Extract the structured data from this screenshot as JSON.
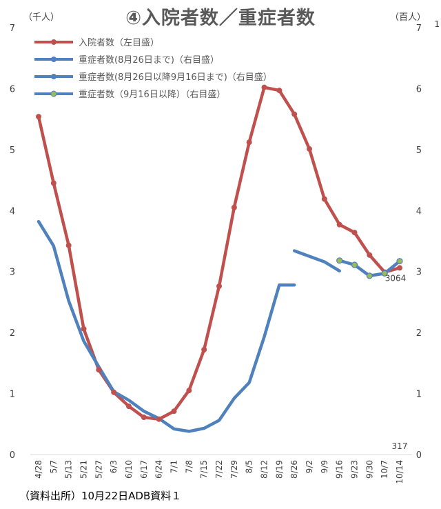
{
  "chart_data": {
    "type": "line",
    "title": "④入院者数／重症者数",
    "left_unit": "（千人）",
    "right_unit": "（百人）",
    "source_note": "（資料出所）10月22日ADB資料１",
    "edge_mark": "1",
    "categories": [
      "4/28",
      "5/7",
      "5/13",
      "5/21",
      "5/27",
      "6/3",
      "6/10",
      "6/17",
      "6/24",
      "7/1",
      "7/8",
      "7/15",
      "7/22",
      "7/29",
      "8/5",
      "8/12",
      "8/19",
      "8/26",
      "9/2",
      "9/9",
      "9/16",
      "9/23",
      "9/30",
      "10/7",
      "10/14"
    ],
    "ylim_left": [
      0,
      7
    ],
    "ylim_right": [
      0,
      7
    ],
    "yticks_left": [
      "0",
      "1",
      "2",
      "3",
      "4",
      "5",
      "6",
      "7"
    ],
    "yticks_right": [
      "0",
      "1",
      "2",
      "3",
      "4",
      "5",
      "6",
      "7"
    ],
    "grid": false,
    "legend_position": "top-left",
    "annotations": [
      {
        "text": "317",
        "series": 1,
        "category": "10/14"
      },
      {
        "text": "3064",
        "series": 0,
        "category": "10/14"
      }
    ],
    "series": [
      {
        "name": "入院者数（左目盛）",
        "axis": "left",
        "color": "#c0504d",
        "marker": "circle",
        "values": [
          5.54,
          4.45,
          3.43,
          2.06,
          1.39,
          1.02,
          0.79,
          0.61,
          0.58,
          0.71,
          1.05,
          1.72,
          2.76,
          4.05,
          5.12,
          6.02,
          5.97,
          5.58,
          5.01,
          4.19,
          3.77,
          3.64,
          3.27,
          2.99,
          3.06
        ]
      },
      {
        "name": "重症者数(8月26日まで)（右目盛）",
        "axis": "right",
        "color": "#4f81bd",
        "marker": "none",
        "values": [
          3.82,
          3.42,
          2.52,
          1.86,
          1.44,
          1.03,
          0.89,
          0.71,
          0.59,
          0.42,
          0.38,
          0.43,
          0.56,
          0.92,
          1.18,
          1.93,
          2.78,
          2.78,
          null,
          null,
          null,
          null,
          null,
          null,
          null
        ]
      },
      {
        "name": "重症者数(8月26日以降9月16日まで)（右目盛）",
        "axis": "right",
        "color": "#4f81bd",
        "marker": "none",
        "values": [
          null,
          null,
          null,
          null,
          null,
          null,
          null,
          null,
          null,
          null,
          null,
          null,
          null,
          null,
          null,
          null,
          null,
          3.34,
          3.25,
          3.16,
          3.01,
          null,
          null,
          null,
          null
        ]
      },
      {
        "name": "重症者数（9月16日以降）（右目盛）",
        "axis": "right",
        "color": "#4f81bd",
        "marker": "circle",
        "marker_color": "#9bbb59",
        "values": [
          null,
          null,
          null,
          null,
          null,
          null,
          null,
          null,
          null,
          null,
          null,
          null,
          null,
          null,
          null,
          null,
          null,
          null,
          null,
          null,
          3.18,
          3.11,
          2.93,
          2.97,
          3.17
        ]
      }
    ]
  }
}
